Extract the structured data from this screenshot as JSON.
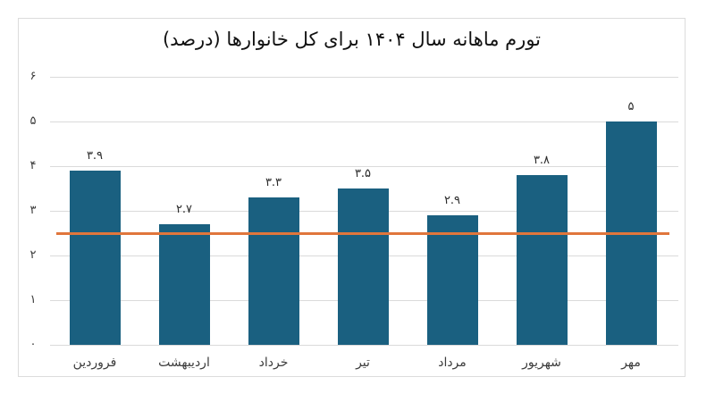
{
  "chart_data": {
    "type": "bar",
    "title": "تورم ماهانه سال ۱۴۰۴ برای کل خانوارها (درصد)",
    "categories": [
      "فروردین",
      "اردیبهشت",
      "خرداد",
      "تیر",
      "مرداد",
      "شهریور",
      "مهر"
    ],
    "values": [
      3.9,
      2.7,
      3.3,
      3.5,
      2.9,
      3.8,
      5
    ],
    "bar_value_labels": [
      "۳.۹",
      "۲.۷",
      "۳.۳",
      "۳.۵",
      "۲.۹",
      "۳.۸",
      "۵"
    ],
    "y_ticks": [
      0,
      1,
      2,
      3,
      4,
      5,
      6
    ],
    "y_tick_labels": [
      "۰",
      "۱",
      "۲",
      "۳",
      "۴",
      "۵",
      "۶"
    ],
    "ylim": [
      0,
      6
    ],
    "grid": true,
    "legend": false,
    "direction": "rtl",
    "bar_color": "#1a6080",
    "reference_line": {
      "value": 2.5,
      "color": "#e0763c"
    }
  }
}
